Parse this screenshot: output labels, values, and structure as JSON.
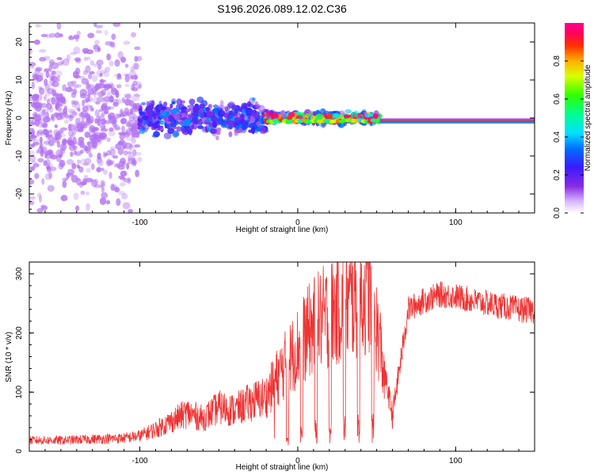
{
  "title": "S196.2026.089.12.02.C36",
  "colors": {
    "frame": "#000000",
    "snr_line": "#ee3333",
    "spec_base": "#7b2cf0",
    "background": "#ffffff"
  },
  "chart_data": [
    {
      "type": "heatmap",
      "name": "spectrogram",
      "xlabel": "Height of straight line (km)",
      "ylabel": "Frequency (Hz)",
      "xlim": [
        -170,
        150
      ],
      "ylim": [
        -25,
        25
      ],
      "xticks": [
        -100,
        0,
        100
      ],
      "xtick_labels": [
        "-100",
        "0",
        "100"
      ],
      "yticks": [
        -20,
        -10,
        0,
        10,
        20
      ],
      "ytick_labels": [
        "-20",
        "-10",
        "0",
        "10",
        "20"
      ],
      "colorbar": {
        "label": "Normalized spectral amplitude",
        "range": [
          0,
          1
        ],
        "ticks": [
          0.0,
          0.2,
          0.4,
          0.6,
          0.8
        ],
        "tick_labels": [
          "0.0",
          "0.2",
          "0.4",
          "0.6",
          "0.8"
        ],
        "colormap": "rainbow"
      },
      "description_regions": [
        {
          "x_range": [
            -170,
            -100
          ],
          "freq_spread": 25,
          "amplitude": 0.05
        },
        {
          "x_range": [
            -100,
            -20
          ],
          "freq_spread": 6,
          "amplitude": 0.25
        },
        {
          "x_range": [
            -20,
            52
          ],
          "freq_spread": 2,
          "amplitude": 0.6
        },
        {
          "x_range": [
            52,
            150
          ],
          "freq_spread": 1,
          "amplitude": 0.95
        }
      ]
    },
    {
      "type": "line",
      "name": "snr",
      "xlabel": "Height of straight line (km)",
      "ylabel": "SNR (10 * v/v)",
      "xlim": [
        -170,
        150
      ],
      "ylim": [
        0,
        320
      ],
      "xticks": [
        -100,
        0,
        100
      ],
      "xtick_labels": [
        "-100",
        "0",
        "100"
      ],
      "yticks": [
        0,
        100,
        200,
        300
      ],
      "ytick_labels": [
        "0",
        "100",
        "200",
        "300"
      ],
      "series": [
        {
          "name": "SNR",
          "x": [
            -170,
            -150,
            -130,
            -110,
            -100,
            -90,
            -80,
            -70,
            -60,
            -50,
            -40,
            -30,
            -20,
            -10,
            0,
            10,
            20,
            30,
            40,
            45,
            52,
            55,
            60,
            65,
            70,
            80,
            90,
            100,
            110,
            120,
            130,
            140,
            150
          ],
          "values": [
            20,
            20,
            22,
            24,
            28,
            40,
            55,
            70,
            60,
            80,
            75,
            90,
            100,
            150,
            190,
            230,
            250,
            270,
            280,
            290,
            200,
            130,
            60,
            150,
            240,
            255,
            265,
            262,
            255,
            250,
            245,
            240,
            238
          ]
        }
      ]
    }
  ]
}
